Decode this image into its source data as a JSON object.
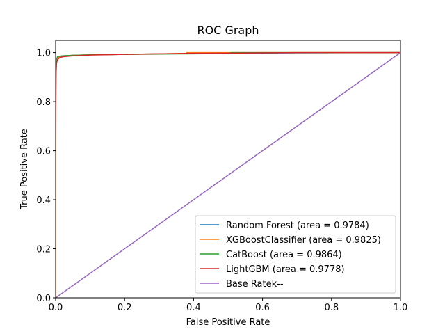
{
  "chart_data": {
    "type": "line",
    "title": "ROC Graph",
    "xlabel": "False Positive Rate",
    "ylabel": "True Positive Rate",
    "xlim": [
      0.0,
      1.0
    ],
    "ylim": [
      0.0,
      1.05
    ],
    "xticks": [
      "0.0",
      "0.2",
      "0.4",
      "0.6",
      "0.8",
      "1.0"
    ],
    "yticks": [
      "0.0",
      "0.2",
      "0.4",
      "0.6",
      "0.8",
      "1.0"
    ],
    "grid": false,
    "legend_position": "lower-right",
    "series": [
      {
        "name": "Random Forest (area = 0.9784)",
        "color": "#1f77b4",
        "x": [
          0,
          0,
          0.001,
          0.002,
          0.003,
          0.005,
          0.01,
          0.02,
          0.05,
          0.1,
          0.2,
          0.3,
          0.4,
          0.5,
          0.6,
          0.7,
          1.0
        ],
        "y": [
          0,
          0.6,
          0.9,
          0.95,
          0.97,
          0.978,
          0.984,
          0.987,
          0.989,
          0.991,
          0.993,
          0.995,
          0.996,
          0.997,
          0.998,
          0.999,
          1.0
        ]
      },
      {
        "name": "XGBoostClassifier (area = 0.9825)",
        "color": "#ff7f0e",
        "x": [
          0,
          0,
          0.001,
          0.002,
          0.003,
          0.005,
          0.01,
          0.02,
          0.05,
          0.1,
          0.2,
          0.3,
          0.38,
          0.38,
          0.5,
          0.7,
          1.0
        ],
        "y": [
          0,
          0.7,
          0.92,
          0.955,
          0.97,
          0.978,
          0.983,
          0.986,
          0.989,
          0.991,
          0.993,
          0.995,
          0.997,
          1.0,
          1.0,
          1.0,
          1.0
        ]
      },
      {
        "name": "CatBoost (area = 0.9864)",
        "color": "#2ca02c",
        "x": [
          0,
          0,
          0.001,
          0.002,
          0.003,
          0.005,
          0.01,
          0.02,
          0.05,
          0.1,
          0.2,
          0.3,
          0.4,
          0.5,
          0.51,
          0.7,
          1.0
        ],
        "y": [
          0,
          0.75,
          0.93,
          0.96,
          0.975,
          0.982,
          0.985,
          0.987,
          0.989,
          0.991,
          0.993,
          0.994,
          0.995,
          0.996,
          1.0,
          1.0,
          1.0
        ]
      },
      {
        "name": "LightGBM (area = 0.9778)",
        "color": "#d62728",
        "x": [
          0,
          0,
          0.001,
          0.002,
          0.003,
          0.006,
          0.01,
          0.02,
          0.05,
          0.1,
          0.2,
          0.3,
          0.4,
          0.5,
          0.6,
          0.7,
          1.0
        ],
        "y": [
          0,
          0.65,
          0.9,
          0.94,
          0.96,
          0.972,
          0.978,
          0.983,
          0.987,
          0.99,
          0.993,
          0.995,
          0.997,
          0.998,
          0.999,
          1.0,
          1.0
        ]
      },
      {
        "name": "Base Ratek--",
        "color": "#9467bd",
        "x": [
          0,
          1
        ],
        "y": [
          0,
          1
        ]
      }
    ]
  }
}
